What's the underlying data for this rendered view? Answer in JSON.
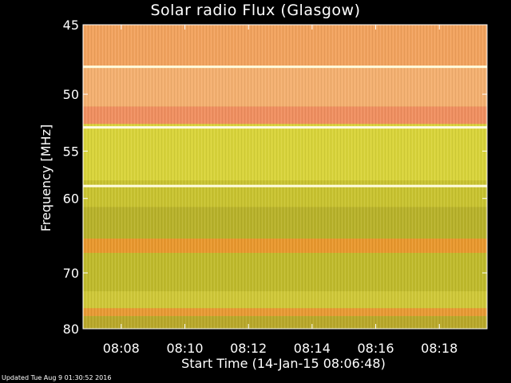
{
  "chart_data": {
    "type": "heatmap",
    "title": "Solar radio Flux (Glasgow)",
    "xlabel": "Start Time (14-Jan-15 08:06:48)",
    "ylabel": "Frequency [MHz]",
    "x_ticks": [
      "08:08",
      "08:10",
      "08:12",
      "08:14",
      "08:16",
      "08:18"
    ],
    "x_tick_minutes": [
      8,
      10,
      12,
      14,
      16,
      18
    ],
    "xlim_minutes": [
      6.8,
      19.5
    ],
    "y_ticks": [
      45,
      50,
      55,
      60,
      70,
      80
    ],
    "ylim": [
      45,
      80
    ],
    "y_scale": "reciprocal",
    "bright_lines_mhz": [
      47.9,
      52.8,
      58.6
    ],
    "bands": [
      {
        "from": 45,
        "to": 48,
        "color": "#f2a35e"
      },
      {
        "from": 48,
        "to": 51,
        "color": "#f4b070"
      },
      {
        "from": 51,
        "to": 52.5,
        "color": "#f08f60"
      },
      {
        "from": 52.5,
        "to": 58,
        "color": "#d9d43a"
      },
      {
        "from": 58,
        "to": 61,
        "color": "#c9c330"
      },
      {
        "from": 61,
        "to": 65,
        "color": "#b8b22a"
      },
      {
        "from": 65,
        "to": 67,
        "color": "#e9982e"
      },
      {
        "from": 67,
        "to": 73,
        "color": "#c0bb2c"
      },
      {
        "from": 73,
        "to": 76,
        "color": "#cfc838"
      },
      {
        "from": 76,
        "to": 77.5,
        "color": "#e89a34"
      },
      {
        "from": 77.5,
        "to": 80,
        "color": "#b9a82a"
      }
    ]
  },
  "footer": "Updated Tue Aug  9 01:30:52 2016"
}
